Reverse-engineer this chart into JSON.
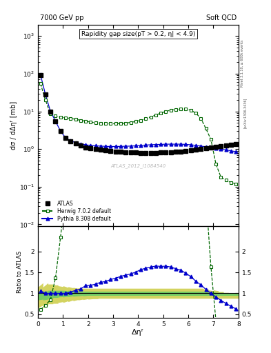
{
  "title_left": "7000 GeV pp",
  "title_right": "Soft QCD",
  "annotation": "Rapidity gap size(pT > 0.2, η| < 4.9)",
  "watermark": "ATLAS_2012_I1084540",
  "right_label": "Rivet 3.1.10, ≥ 600k events",
  "arxiv_label": "[arXiv:1306.3436]",
  "xlabel": "Δηᶠ",
  "ylabel_main": "dσ / dΔηᶠ [mb]",
  "ylabel_ratio": "Ratio to ATLAS",
  "atlas_x": [
    0.1,
    0.3,
    0.5,
    0.7,
    0.9,
    1.1,
    1.3,
    1.5,
    1.7,
    1.9,
    2.1,
    2.3,
    2.5,
    2.7,
    2.9,
    3.1,
    3.3,
    3.5,
    3.7,
    3.9,
    4.1,
    4.3,
    4.5,
    4.7,
    4.9,
    5.1,
    5.3,
    5.5,
    5.7,
    5.9,
    6.1,
    6.3,
    6.5,
    6.7,
    6.9,
    7.1,
    7.3,
    7.5,
    7.7,
    7.9
  ],
  "atlas_y": [
    90,
    28,
    10,
    5.5,
    3.0,
    2.0,
    1.6,
    1.4,
    1.25,
    1.1,
    1.05,
    1.0,
    0.95,
    0.92,
    0.88,
    0.86,
    0.84,
    0.83,
    0.82,
    0.81,
    0.8,
    0.8,
    0.8,
    0.8,
    0.81,
    0.82,
    0.83,
    0.85,
    0.87,
    0.9,
    0.93,
    0.97,
    1.0,
    1.05,
    1.1,
    1.15,
    1.2,
    1.25,
    1.3,
    1.35
  ],
  "herwig_x": [
    0.1,
    0.3,
    0.5,
    0.7,
    0.9,
    1.1,
    1.3,
    1.5,
    1.7,
    1.9,
    2.1,
    2.3,
    2.5,
    2.7,
    2.9,
    3.1,
    3.3,
    3.5,
    3.7,
    3.9,
    4.1,
    4.3,
    4.5,
    4.7,
    4.9,
    5.1,
    5.3,
    5.5,
    5.7,
    5.9,
    6.1,
    6.3,
    6.5,
    6.7,
    6.9,
    7.1,
    7.3,
    7.5,
    7.7,
    7.9
  ],
  "herwig_y": [
    55,
    20,
    8.5,
    7.5,
    7.0,
    6.8,
    6.5,
    6.2,
    5.8,
    5.5,
    5.2,
    5.0,
    4.8,
    4.7,
    4.7,
    4.7,
    4.8,
    4.9,
    5.1,
    5.4,
    5.8,
    6.4,
    7.1,
    8.0,
    9.0,
    10.0,
    10.8,
    11.2,
    11.5,
    11.5,
    10.8,
    9.0,
    6.5,
    3.5,
    1.8,
    0.4,
    0.18,
    0.15,
    0.13,
    0.12
  ],
  "pythia_x": [
    0.1,
    0.3,
    0.5,
    0.7,
    0.9,
    1.1,
    1.3,
    1.5,
    1.7,
    1.9,
    2.1,
    2.3,
    2.5,
    2.7,
    2.9,
    3.1,
    3.3,
    3.5,
    3.7,
    3.9,
    4.1,
    4.3,
    4.5,
    4.7,
    4.9,
    5.1,
    5.3,
    5.5,
    5.7,
    5.9,
    6.1,
    6.3,
    6.5,
    6.7,
    6.9,
    7.1,
    7.3,
    7.5,
    7.7,
    7.9
  ],
  "pythia_y": [
    95,
    28,
    10,
    5.5,
    3.0,
    2.0,
    1.65,
    1.5,
    1.38,
    1.3,
    1.25,
    1.22,
    1.2,
    1.18,
    1.17,
    1.17,
    1.18,
    1.19,
    1.2,
    1.22,
    1.25,
    1.28,
    1.3,
    1.32,
    1.33,
    1.35,
    1.35,
    1.35,
    1.35,
    1.33,
    1.3,
    1.25,
    1.2,
    1.15,
    1.1,
    1.05,
    1.0,
    0.95,
    0.9,
    0.85
  ],
  "atlas_syst_lo": [
    0.65,
    0.72,
    0.75,
    0.76,
    0.78,
    0.8,
    0.82,
    0.84,
    0.85,
    0.86,
    0.87,
    0.87,
    0.88,
    0.88,
    0.88,
    0.88,
    0.88,
    0.88,
    0.88,
    0.88,
    0.88,
    0.88,
    0.88,
    0.88,
    0.88,
    0.88,
    0.88,
    0.88,
    0.88,
    0.88,
    0.88,
    0.88,
    0.88,
    0.88,
    0.88,
    0.88,
    0.88,
    0.88,
    0.88,
    0.88
  ],
  "atlas_syst_hi": [
    1.15,
    1.25,
    1.22,
    1.2,
    1.18,
    1.16,
    1.14,
    1.13,
    1.12,
    1.12,
    1.12,
    1.12,
    1.12,
    1.12,
    1.12,
    1.12,
    1.12,
    1.12,
    1.12,
    1.12,
    1.12,
    1.12,
    1.12,
    1.12,
    1.12,
    1.12,
    1.12,
    1.12,
    1.12,
    1.12,
    1.12,
    1.12,
    1.12,
    1.1,
    1.08,
    1.06,
    1.04,
    1.02,
    1.01,
    1.0
  ],
  "atlas_stat_lo": [
    0.84,
    0.86,
    0.88,
    0.9,
    0.91,
    0.92,
    0.93,
    0.94,
    0.94,
    0.95,
    0.95,
    0.95,
    0.95,
    0.95,
    0.95,
    0.95,
    0.95,
    0.95,
    0.95,
    0.95,
    0.95,
    0.95,
    0.95,
    0.95,
    0.95,
    0.95,
    0.95,
    0.95,
    0.95,
    0.95,
    0.95,
    0.95,
    0.95,
    0.95,
    0.95,
    0.95,
    0.95,
    0.95,
    0.95,
    0.95
  ],
  "atlas_stat_hi": [
    1.05,
    1.06,
    1.07,
    1.07,
    1.07,
    1.07,
    1.06,
    1.06,
    1.05,
    1.05,
    1.05,
    1.05,
    1.05,
    1.05,
    1.05,
    1.05,
    1.05,
    1.05,
    1.05,
    1.05,
    1.05,
    1.05,
    1.05,
    1.05,
    1.05,
    1.05,
    1.05,
    1.05,
    1.05,
    1.05,
    1.05,
    1.05,
    1.05,
    1.04,
    1.03,
    1.02,
    1.02,
    1.01,
    1.01,
    1.0
  ],
  "ylim_main": [
    0.009,
    2000
  ],
  "ylim_ratio": [
    0.42,
    2.6
  ],
  "xlim": [
    0,
    8
  ],
  "atlas_color": "#000000",
  "herwig_color": "#006600",
  "pythia_color": "#0000cc",
  "stat_band_color": "#66cc66",
  "syst_band_color": "#cccc44",
  "right_axis_ticks_main": [
    0.01,
    0.1,
    1,
    10,
    100,
    1000
  ],
  "ratio_yticks": [
    0.5,
    1.0,
    1.5,
    2.0
  ],
  "ratio_ytick_labels": [
    "0.5",
    "1",
    "1.5",
    "2"
  ]
}
